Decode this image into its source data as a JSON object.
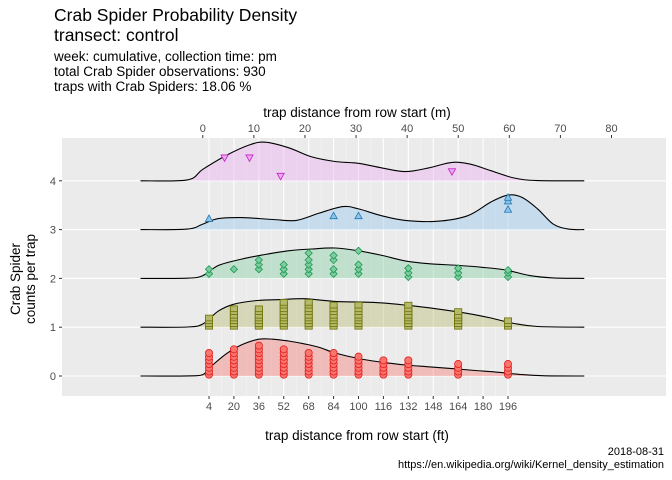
{
  "header": {
    "title_line1": "Crab Spider Probability Density",
    "title_line2": "transect: control",
    "subtitle": [
      "week: cumulative, collection time: pm",
      "total Crab Spider observations: 930",
      "traps with Crab Spiders: 18.06 %"
    ]
  },
  "footer": {
    "date": "2018-08-31",
    "url": "https://en.wikipedia.org/wiki/Kernel_density_estimation"
  },
  "chart_data": {
    "type": "ridgeline",
    "title": "Crab Spider Probability Density",
    "subtitle": "transect: control",
    "xlabel_bottom": "trap distance from row start (ft)",
    "xlabel_top": "trap distance from row start (m)",
    "ylabel": "Crab Spider counts per trap",
    "x_ticks_ft": [
      4,
      20,
      36,
      52,
      68,
      84,
      100,
      116,
      132,
      148,
      164,
      180,
      196
    ],
    "x_ticks_m": [
      0,
      10,
      20,
      30,
      40,
      50,
      60,
      70,
      80
    ],
    "y_ticks": [
      0,
      1,
      2,
      3,
      4
    ],
    "xlim_ft": [
      -42,
      246
    ],
    "grid": true,
    "series": [
      {
        "name": "0",
        "level": 0,
        "fill": "#f8766d",
        "stroke": "#e41a1c",
        "marker": "circle",
        "density": [
          [
            -40,
            0
          ],
          [
            -10,
            0.003
          ],
          [
            0,
            0.03
          ],
          [
            5,
            0.2
          ],
          [
            15,
            0.48
          ],
          [
            25,
            0.68
          ],
          [
            36,
            0.8
          ],
          [
            45,
            0.8
          ],
          [
            55,
            0.76
          ],
          [
            65,
            0.7
          ],
          [
            75,
            0.62
          ],
          [
            85,
            0.5
          ],
          [
            100,
            0.38
          ],
          [
            115,
            0.3
          ],
          [
            130,
            0.24
          ],
          [
            145,
            0.2
          ],
          [
            160,
            0.16
          ],
          [
            175,
            0.12
          ],
          [
            190,
            0.08
          ],
          [
            205,
            0.03
          ],
          [
            220,
            0.005
          ],
          [
            245,
            0
          ]
        ],
        "points": [
          [
            4,
            0.03
          ],
          [
            4,
            0.1
          ],
          [
            4,
            0.18
          ],
          [
            4,
            0.26
          ],
          [
            4,
            0.34
          ],
          [
            4,
            0.42
          ],
          [
            4,
            0.5
          ],
          [
            20,
            0.03
          ],
          [
            20,
            0.1
          ],
          [
            20,
            0.18
          ],
          [
            20,
            0.26
          ],
          [
            20,
            0.34
          ],
          [
            20,
            0.42
          ],
          [
            20,
            0.5
          ],
          [
            20,
            0.58
          ],
          [
            36,
            0.03
          ],
          [
            36,
            0.1
          ],
          [
            36,
            0.18
          ],
          [
            36,
            0.26
          ],
          [
            36,
            0.34
          ],
          [
            36,
            0.42
          ],
          [
            36,
            0.5
          ],
          [
            36,
            0.58
          ],
          [
            36,
            0.66
          ],
          [
            52,
            0.03
          ],
          [
            52,
            0.1
          ],
          [
            52,
            0.18
          ],
          [
            52,
            0.26
          ],
          [
            52,
            0.34
          ],
          [
            52,
            0.42
          ],
          [
            52,
            0.5
          ],
          [
            52,
            0.58
          ],
          [
            68,
            0.03
          ],
          [
            68,
            0.1
          ],
          [
            68,
            0.18
          ],
          [
            68,
            0.26
          ],
          [
            68,
            0.34
          ],
          [
            68,
            0.42
          ],
          [
            68,
            0.5
          ],
          [
            84,
            0.03
          ],
          [
            84,
            0.1
          ],
          [
            84,
            0.18
          ],
          [
            84,
            0.26
          ],
          [
            84,
            0.34
          ],
          [
            84,
            0.42
          ],
          [
            84,
            0.5
          ],
          [
            100,
            0.03
          ],
          [
            100,
            0.1
          ],
          [
            100,
            0.18
          ],
          [
            100,
            0.26
          ],
          [
            100,
            0.34
          ],
          [
            100,
            0.42
          ],
          [
            116,
            0.03
          ],
          [
            116,
            0.1
          ],
          [
            116,
            0.18
          ],
          [
            116,
            0.26
          ],
          [
            116,
            0.34
          ],
          [
            132,
            0.03
          ],
          [
            132,
            0.1
          ],
          [
            132,
            0.18
          ],
          [
            132,
            0.26
          ],
          [
            132,
            0.34
          ],
          [
            164,
            0.03
          ],
          [
            164,
            0.1
          ],
          [
            164,
            0.18
          ],
          [
            164,
            0.26
          ],
          [
            196,
            0.03
          ],
          [
            196,
            0.1
          ],
          [
            196,
            0.18
          ],
          [
            196,
            0.26
          ]
        ]
      },
      {
        "name": "1",
        "level": 1,
        "fill": "#b5b96b",
        "stroke": "#6b7000",
        "marker": "square",
        "density": [
          [
            -40,
            0
          ],
          [
            -10,
            0.005
          ],
          [
            0,
            0.07
          ],
          [
            10,
            0.35
          ],
          [
            20,
            0.5
          ],
          [
            35,
            0.58
          ],
          [
            50,
            0.6
          ],
          [
            65,
            0.62
          ],
          [
            85,
            0.56
          ],
          [
            110,
            0.54
          ],
          [
            130,
            0.48
          ],
          [
            150,
            0.4
          ],
          [
            170,
            0.3
          ],
          [
            185,
            0.2
          ],
          [
            200,
            0.08
          ],
          [
            215,
            0.015
          ],
          [
            245,
            0
          ]
        ],
        "points": [
          [
            4,
            0.02
          ],
          [
            4,
            0.08
          ],
          [
            4,
            0.14
          ],
          [
            4,
            0.2
          ],
          [
            20,
            0.02
          ],
          [
            20,
            0.08
          ],
          [
            20,
            0.14
          ],
          [
            20,
            0.2
          ],
          [
            20,
            0.26
          ],
          [
            20,
            0.34
          ],
          [
            20,
            0.4
          ],
          [
            36,
            0.02
          ],
          [
            36,
            0.08
          ],
          [
            36,
            0.14
          ],
          [
            36,
            0.2
          ],
          [
            36,
            0.26
          ],
          [
            36,
            0.34
          ],
          [
            36,
            0.4
          ],
          [
            52,
            0.02
          ],
          [
            52,
            0.08
          ],
          [
            52,
            0.14
          ],
          [
            52,
            0.2
          ],
          [
            52,
            0.26
          ],
          [
            52,
            0.34
          ],
          [
            52,
            0.4
          ],
          [
            52,
            0.48
          ],
          [
            52,
            0.54
          ],
          [
            68,
            0.02
          ],
          [
            68,
            0.08
          ],
          [
            68,
            0.14
          ],
          [
            68,
            0.2
          ],
          [
            68,
            0.26
          ],
          [
            68,
            0.34
          ],
          [
            68,
            0.4
          ],
          [
            68,
            0.48
          ],
          [
            68,
            0.54
          ],
          [
            84,
            0.02
          ],
          [
            84,
            0.08
          ],
          [
            84,
            0.14
          ],
          [
            84,
            0.2
          ],
          [
            84,
            0.26
          ],
          [
            84,
            0.34
          ],
          [
            84,
            0.4
          ],
          [
            84,
            0.48
          ],
          [
            100,
            0.02
          ],
          [
            100,
            0.08
          ],
          [
            100,
            0.14
          ],
          [
            100,
            0.2
          ],
          [
            100,
            0.26
          ],
          [
            100,
            0.34
          ],
          [
            100,
            0.4
          ],
          [
            100,
            0.48
          ],
          [
            132,
            0.02
          ],
          [
            132,
            0.08
          ],
          [
            132,
            0.14
          ],
          [
            132,
            0.2
          ],
          [
            132,
            0.26
          ],
          [
            132,
            0.34
          ],
          [
            132,
            0.4
          ],
          [
            132,
            0.48
          ],
          [
            164,
            0.02
          ],
          [
            164,
            0.08
          ],
          [
            164,
            0.14
          ],
          [
            164,
            0.2
          ],
          [
            164,
            0.26
          ],
          [
            164,
            0.34
          ],
          [
            196,
            0.02
          ],
          [
            196,
            0.08
          ],
          [
            196,
            0.14
          ]
        ]
      },
      {
        "name": "2",
        "level": 2,
        "fill": "#7fcca0",
        "stroke": "#1a9850",
        "marker": "diamond",
        "density": [
          [
            -40,
            0
          ],
          [
            -10,
            0.005
          ],
          [
            0,
            0.06
          ],
          [
            10,
            0.28
          ],
          [
            25,
            0.42
          ],
          [
            40,
            0.52
          ],
          [
            55,
            0.6
          ],
          [
            70,
            0.64
          ],
          [
            85,
            0.66
          ],
          [
            100,
            0.6
          ],
          [
            115,
            0.5
          ],
          [
            130,
            0.38
          ],
          [
            145,
            0.32
          ],
          [
            165,
            0.28
          ],
          [
            180,
            0.24
          ],
          [
            195,
            0.18
          ],
          [
            210,
            0.06
          ],
          [
            225,
            0.01
          ],
          [
            245,
            0
          ]
        ],
        "points": [
          [
            4,
            0.1
          ],
          [
            4,
            0.2
          ],
          [
            20,
            0.2
          ],
          [
            36,
            0.2
          ],
          [
            36,
            0.3
          ],
          [
            36,
            0.4
          ],
          [
            52,
            0.1
          ],
          [
            52,
            0.2
          ],
          [
            52,
            0.3
          ],
          [
            68,
            0.1
          ],
          [
            68,
            0.2
          ],
          [
            68,
            0.3
          ],
          [
            68,
            0.4
          ],
          [
            68,
            0.55
          ],
          [
            84,
            0.1
          ],
          [
            84,
            0.2
          ],
          [
            84,
            0.4
          ],
          [
            84,
            0.5
          ],
          [
            100,
            0.1
          ],
          [
            100,
            0.2
          ],
          [
            100,
            0.3
          ],
          [
            100,
            0.6
          ],
          [
            132,
            0.03
          ],
          [
            132,
            0.12
          ],
          [
            132,
            0.22
          ],
          [
            164,
            0.03
          ],
          [
            164,
            0.12
          ],
          [
            164,
            0.22
          ],
          [
            196,
            0.03
          ],
          [
            196,
            0.12
          ],
          [
            196,
            0.18
          ]
        ]
      },
      {
        "name": "3",
        "level": 3,
        "fill": "#8ec4ea",
        "stroke": "#1f78b4",
        "marker": "triangle-up",
        "density": [
          [
            -40,
            0
          ],
          [
            -10,
            0.01
          ],
          [
            0,
            0.12
          ],
          [
            10,
            0.24
          ],
          [
            25,
            0.26
          ],
          [
            45,
            0.22
          ],
          [
            60,
            0.2
          ],
          [
            75,
            0.36
          ],
          [
            90,
            0.5
          ],
          [
            100,
            0.45
          ],
          [
            115,
            0.3
          ],
          [
            130,
            0.2
          ],
          [
            150,
            0.18
          ],
          [
            170,
            0.3
          ],
          [
            185,
            0.6
          ],
          [
            196,
            0.75
          ],
          [
            205,
            0.7
          ],
          [
            215,
            0.45
          ],
          [
            225,
            0.12
          ],
          [
            235,
            0.01
          ],
          [
            245,
            0
          ]
        ],
        "points": [
          [
            4,
            0.24
          ],
          [
            84,
            0.3
          ],
          [
            100,
            0.3
          ],
          [
            196,
            0.44
          ],
          [
            196,
            0.62
          ],
          [
            196,
            0.7
          ]
        ]
      },
      {
        "name": "4",
        "level": 4,
        "fill": "#eaaaf0",
        "stroke": "#c21ec4",
        "marker": "triangle-down",
        "density": [
          [
            -40,
            0
          ],
          [
            -10,
            0.02
          ],
          [
            0,
            0.25
          ],
          [
            15,
            0.55
          ],
          [
            30,
            0.78
          ],
          [
            40,
            0.84
          ],
          [
            55,
            0.72
          ],
          [
            70,
            0.52
          ],
          [
            85,
            0.42
          ],
          [
            100,
            0.38
          ],
          [
            115,
            0.28
          ],
          [
            130,
            0.2
          ],
          [
            145,
            0.28
          ],
          [
            160,
            0.4
          ],
          [
            172,
            0.36
          ],
          [
            185,
            0.22
          ],
          [
            200,
            0.06
          ],
          [
            215,
            0.005
          ],
          [
            245,
            0
          ]
        ],
        "points": [
          [
            14,
            0.5
          ],
          [
            30,
            0.5
          ],
          [
            50,
            0.1
          ],
          [
            160,
            0.2
          ]
        ]
      }
    ]
  }
}
